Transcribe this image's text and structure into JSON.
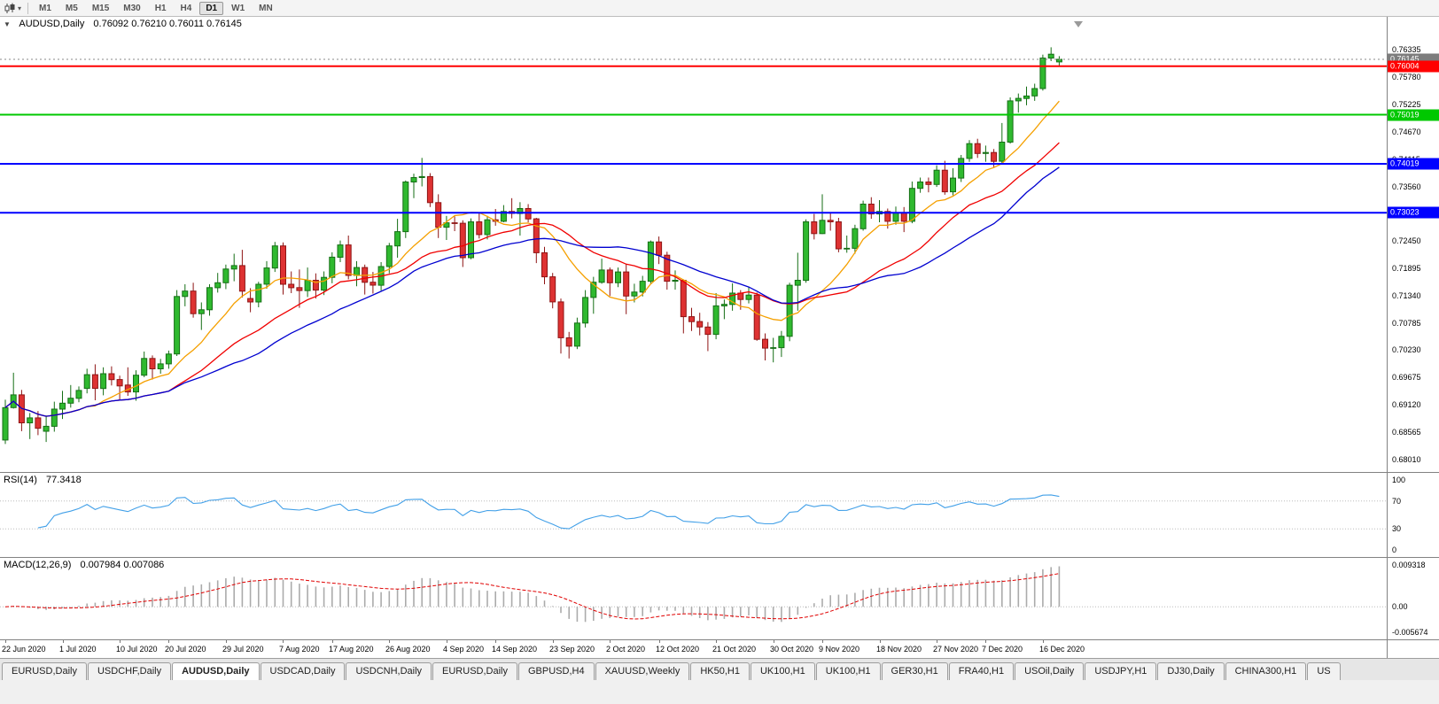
{
  "icons": {
    "collapse_arrow": "▼",
    "dropdown_arrow": "▾"
  },
  "toolbar": {
    "timeframes": [
      "M1",
      "M5",
      "M15",
      "M30",
      "H1",
      "H4",
      "D1",
      "W1",
      "MN"
    ],
    "active_timeframe": "D1"
  },
  "main_chart": {
    "title": "AUDUSD,Daily",
    "ohlc_text": "0.76092 0.76210 0.76011 0.76145"
  },
  "rsi_panel": {
    "label": "RSI(14)",
    "value": "77.3418",
    "period": 14,
    "line_color": "#42a0e8",
    "levels": [
      70,
      30
    ],
    "ticks": [
      {
        "value": 100,
        "label": "100"
      },
      {
        "value": 70,
        "label": "70"
      },
      {
        "value": 30,
        "label": "30"
      },
      {
        "value": 0,
        "label": "0"
      }
    ]
  },
  "macd_panel": {
    "label": "MACD(12,26,9)",
    "value": "0.007984 0.007086",
    "fast": 12,
    "slow": 26,
    "signal": 9,
    "axis_max": 0.009318,
    "axis_min": -0.005674,
    "histogram_color": "#ababab",
    "signal_color": "#e00000",
    "ticks": [
      {
        "value": 0.009318,
        "label": "0.009318"
      },
      {
        "value": 0,
        "label": "0.00"
      },
      {
        "value": -0.005674,
        "label": "-0.005674"
      }
    ]
  },
  "chart_data": {
    "type": "candlestick",
    "symbol": "AUDUSD",
    "period": "Daily",
    "candle_colors": {
      "bull_fill": "#2fb92f",
      "bull_stroke": "#156e15",
      "bear_fill": "#de3232",
      "bear_stroke": "#8e1414"
    },
    "price_axis": {
      "view_min": 0.6775,
      "view_max": 0.7701,
      "current_price": 0.76145,
      "current_price_label": "0.76145",
      "ticks": [
        "0.76335",
        "0.75780",
        "0.75225",
        "0.74670",
        "0.74115",
        "0.73560",
        "0.73005",
        "0.72450",
        "0.71895",
        "0.71340",
        "0.70785",
        "0.70230",
        "0.69675",
        "0.69120",
        "0.68565",
        "0.68010"
      ]
    },
    "horizontal_lines": [
      {
        "price": 0.76004,
        "label": "0.76004",
        "color": "#ff0000"
      },
      {
        "price": 0.75019,
        "label": "0.75019",
        "color": "#00c800"
      },
      {
        "price": 0.74019,
        "label": "0.74019",
        "color": "#0000ff"
      },
      {
        "price": 0.73023,
        "label": "0.73023",
        "color": "#0000ff"
      }
    ],
    "moving_averages": [
      {
        "period": 10,
        "method": "sma",
        "color": "#f5a000"
      },
      {
        "period": 21,
        "method": "sma",
        "color": "#f00000"
      },
      {
        "period": 30,
        "method": "sma",
        "color": "#0000d0"
      }
    ],
    "date_labels": [
      {
        "i": 0,
        "label": "22 Jun 2020"
      },
      {
        "i": 7,
        "label": "1 Jul 2020"
      },
      {
        "i": 14,
        "label": "10 Jul 2020"
      },
      {
        "i": 20,
        "label": "20 Jul 2020"
      },
      {
        "i": 27,
        "label": "29 Jul 2020"
      },
      {
        "i": 34,
        "label": "7 Aug 2020"
      },
      {
        "i": 40,
        "label": "17 Aug 2020"
      },
      {
        "i": 47,
        "label": "26 Aug 2020"
      },
      {
        "i": 54,
        "label": "4 Sep 2020"
      },
      {
        "i": 60,
        "label": "14 Sep 2020"
      },
      {
        "i": 67,
        "label": "23 Sep 2020"
      },
      {
        "i": 74,
        "label": "2 Oct 2020"
      },
      {
        "i": 80,
        "label": "12 Oct 2020"
      },
      {
        "i": 87,
        "label": "21 Oct 2020"
      },
      {
        "i": 94,
        "label": "30 Oct 2020"
      },
      {
        "i": 100,
        "label": "9 Nov 2020"
      },
      {
        "i": 107,
        "label": "18 Nov 2020"
      },
      {
        "i": 114,
        "label": "27 Nov 2020"
      },
      {
        "i": 120,
        "label": "7 Dec 2020"
      },
      {
        "i": 127,
        "label": "16 Dec 2020"
      }
    ],
    "candles": [
      [
        0.684,
        0.6922,
        0.6832,
        0.6906
      ],
      [
        0.6906,
        0.6977,
        0.6904,
        0.6932
      ],
      [
        0.6932,
        0.6942,
        0.6858,
        0.6875
      ],
      [
        0.6875,
        0.6895,
        0.6842,
        0.6885
      ],
      [
        0.6885,
        0.6899,
        0.685,
        0.6864
      ],
      [
        0.6858,
        0.689,
        0.6836,
        0.6868
      ],
      [
        0.6868,
        0.6918,
        0.6857,
        0.6903
      ],
      [
        0.6903,
        0.694,
        0.6883,
        0.6915
      ],
      [
        0.6915,
        0.6952,
        0.6906,
        0.6925
      ],
      [
        0.6925,
        0.6949,
        0.6917,
        0.6941
      ],
      [
        0.6945,
        0.6985,
        0.6935,
        0.6973
      ],
      [
        0.6973,
        0.6994,
        0.6921,
        0.6945
      ],
      [
        0.6945,
        0.6988,
        0.6931,
        0.6975
      ],
      [
        0.6975,
        0.699,
        0.6951,
        0.6963
      ],
      [
        0.6963,
        0.6971,
        0.6922,
        0.695
      ],
      [
        0.6952,
        0.6988,
        0.693,
        0.6938
      ],
      [
        0.6938,
        0.6982,
        0.692,
        0.6972
      ],
      [
        0.6972,
        0.702,
        0.6968,
        0.7006
      ],
      [
        0.7006,
        0.7012,
        0.6963,
        0.6985
      ],
      [
        0.6985,
        0.7005,
        0.6975,
        0.6995
      ],
      [
        0.6995,
        0.7022,
        0.6985,
        0.7015
      ],
      [
        0.7015,
        0.7145,
        0.7011,
        0.7132
      ],
      [
        0.7132,
        0.7157,
        0.7112,
        0.7143
      ],
      [
        0.7143,
        0.716,
        0.7089,
        0.7097
      ],
      [
        0.7097,
        0.712,
        0.7064,
        0.7105
      ],
      [
        0.7105,
        0.7157,
        0.7093,
        0.715
      ],
      [
        0.715,
        0.718,
        0.714,
        0.716
      ],
      [
        0.716,
        0.7197,
        0.7147,
        0.7188
      ],
      [
        0.7188,
        0.7219,
        0.7163,
        0.7195
      ],
      [
        0.7195,
        0.7227,
        0.713,
        0.7143
      ],
      [
        0.7128,
        0.7149,
        0.71,
        0.7121
      ],
      [
        0.7121,
        0.7162,
        0.711,
        0.7157
      ],
      [
        0.7157,
        0.7204,
        0.7148,
        0.719
      ],
      [
        0.719,
        0.7243,
        0.7182,
        0.7235
      ],
      [
        0.7235,
        0.7242,
        0.7136,
        0.7157
      ],
      [
        0.7157,
        0.7183,
        0.7139,
        0.715
      ],
      [
        0.715,
        0.7187,
        0.7109,
        0.7144
      ],
      [
        0.7144,
        0.7191,
        0.7131,
        0.7165
      ],
      [
        0.7165,
        0.7179,
        0.7128,
        0.7145
      ],
      [
        0.7145,
        0.7183,
        0.7135,
        0.7171
      ],
      [
        0.7171,
        0.7222,
        0.7159,
        0.7212
      ],
      [
        0.7212,
        0.7246,
        0.7202,
        0.7237
      ],
      [
        0.7237,
        0.7256,
        0.7167,
        0.7175
      ],
      [
        0.7175,
        0.7204,
        0.7153,
        0.7191
      ],
      [
        0.7191,
        0.7197,
        0.7136,
        0.7161
      ],
      [
        0.7161,
        0.7182,
        0.7138,
        0.7155
      ],
      [
        0.7155,
        0.7202,
        0.7144,
        0.7193
      ],
      [
        0.7193,
        0.7241,
        0.7179,
        0.7235
      ],
      [
        0.7235,
        0.729,
        0.7211,
        0.7264
      ],
      [
        0.7264,
        0.7368,
        0.7251,
        0.7365
      ],
      [
        0.7365,
        0.7382,
        0.7332,
        0.7374
      ],
      [
        0.7374,
        0.7414,
        0.7356,
        0.7376
      ],
      [
        0.7376,
        0.7383,
        0.7314,
        0.7323
      ],
      [
        0.7323,
        0.734,
        0.7251,
        0.7273
      ],
      [
        0.7273,
        0.7296,
        0.7247,
        0.7282
      ],
      [
        0.7282,
        0.7295,
        0.7265,
        0.7281
      ],
      [
        0.7281,
        0.7287,
        0.7192,
        0.7211
      ],
      [
        0.7211,
        0.7291,
        0.7208,
        0.7284
      ],
      [
        0.7284,
        0.7302,
        0.725,
        0.7258
      ],
      [
        0.7258,
        0.7296,
        0.7248,
        0.7288
      ],
      [
        0.7288,
        0.731,
        0.7276,
        0.7285
      ],
      [
        0.7285,
        0.7318,
        0.7283,
        0.7305
      ],
      [
        0.7305,
        0.7332,
        0.7291,
        0.7301
      ],
      [
        0.7301,
        0.7324,
        0.7256,
        0.7311
      ],
      [
        0.7311,
        0.732,
        0.7283,
        0.729
      ],
      [
        0.729,
        0.7292,
        0.72,
        0.7221
      ],
      [
        0.7221,
        0.7233,
        0.7157,
        0.7172
      ],
      [
        0.7172,
        0.718,
        0.7108,
        0.7121
      ],
      [
        0.7121,
        0.7128,
        0.7016,
        0.7048
      ],
      [
        0.7048,
        0.706,
        0.7006,
        0.7031
      ],
      [
        0.7031,
        0.7089,
        0.7025,
        0.7078
      ],
      [
        0.7078,
        0.7145,
        0.7069,
        0.713
      ],
      [
        0.713,
        0.7172,
        0.7097,
        0.7161
      ],
      [
        0.7161,
        0.7209,
        0.7158,
        0.7186
      ],
      [
        0.7186,
        0.7191,
        0.7133,
        0.716
      ],
      [
        0.716,
        0.7191,
        0.7151,
        0.7182
      ],
      [
        0.7182,
        0.7198,
        0.7096,
        0.7133
      ],
      [
        0.7133,
        0.7158,
        0.712,
        0.7141
      ],
      [
        0.7141,
        0.7174,
        0.7132,
        0.7163
      ],
      [
        0.7163,
        0.7246,
        0.7157,
        0.7243
      ],
      [
        0.7243,
        0.7254,
        0.7198,
        0.7216
      ],
      [
        0.7216,
        0.7223,
        0.7146,
        0.7163
      ],
      [
        0.7163,
        0.7185,
        0.7146,
        0.7165
      ],
      [
        0.7165,
        0.7167,
        0.7057,
        0.7091
      ],
      [
        0.7091,
        0.7109,
        0.7062,
        0.7081
      ],
      [
        0.7081,
        0.7099,
        0.7053,
        0.707
      ],
      [
        0.707,
        0.708,
        0.7021,
        0.7055
      ],
      [
        0.7055,
        0.7139,
        0.7045,
        0.7113
      ],
      [
        0.7113,
        0.7126,
        0.7086,
        0.7116
      ],
      [
        0.7116,
        0.7159,
        0.7103,
        0.7139
      ],
      [
        0.7139,
        0.7145,
        0.7105,
        0.7126
      ],
      [
        0.7126,
        0.7152,
        0.7118,
        0.7135
      ],
      [
        0.7135,
        0.714,
        0.7042,
        0.7045
      ],
      [
        0.7045,
        0.7057,
        0.7002,
        0.7027
      ],
      [
        0.7027,
        0.7048,
        0.6998,
        0.7028
      ],
      [
        0.7028,
        0.7062,
        0.7009,
        0.7051
      ],
      [
        0.7051,
        0.716,
        0.7041,
        0.7155
      ],
      [
        0.7155,
        0.7221,
        0.7103,
        0.7165
      ],
      [
        0.7165,
        0.7289,
        0.716,
        0.7284
      ],
      [
        0.7284,
        0.73,
        0.7248,
        0.726
      ],
      [
        0.726,
        0.734,
        0.7259,
        0.7287
      ],
      [
        0.7287,
        0.7302,
        0.7266,
        0.7284
      ],
      [
        0.7284,
        0.7292,
        0.7222,
        0.7229
      ],
      [
        0.7229,
        0.7256,
        0.7221,
        0.723
      ],
      [
        0.723,
        0.7278,
        0.7219,
        0.727
      ],
      [
        0.727,
        0.7327,
        0.7266,
        0.732
      ],
      [
        0.732,
        0.7334,
        0.729,
        0.73
      ],
      [
        0.73,
        0.7328,
        0.7283,
        0.7305
      ],
      [
        0.7305,
        0.7311,
        0.727,
        0.7285
      ],
      [
        0.7285,
        0.7315,
        0.7278,
        0.7302
      ],
      [
        0.7302,
        0.7314,
        0.7263,
        0.7285
      ],
      [
        0.7285,
        0.7366,
        0.7281,
        0.7352
      ],
      [
        0.7352,
        0.7374,
        0.7343,
        0.7365
      ],
      [
        0.7365,
        0.7374,
        0.7344,
        0.736
      ],
      [
        0.736,
        0.7399,
        0.7355,
        0.7389
      ],
      [
        0.7389,
        0.7408,
        0.7339,
        0.7345
      ],
      [
        0.7345,
        0.7393,
        0.7338,
        0.7373
      ],
      [
        0.7373,
        0.742,
        0.7365,
        0.7413
      ],
      [
        0.7413,
        0.745,
        0.7406,
        0.7443
      ],
      [
        0.7443,
        0.7453,
        0.7414,
        0.7423
      ],
      [
        0.7423,
        0.7439,
        0.7406,
        0.7425
      ],
      [
        0.7425,
        0.7432,
        0.7395,
        0.7407
      ],
      [
        0.7407,
        0.7485,
        0.7401,
        0.7446
      ],
      [
        0.7446,
        0.7537,
        0.7443,
        0.753
      ],
      [
        0.753,
        0.7545,
        0.7506,
        0.7535
      ],
      [
        0.7535,
        0.7559,
        0.7521,
        0.754
      ],
      [
        0.754,
        0.7565,
        0.753,
        0.7555
      ],
      [
        0.7555,
        0.7624,
        0.7551,
        0.7617
      ],
      [
        0.7617,
        0.7639,
        0.7611,
        0.7625
      ],
      [
        0.76092,
        0.7621,
        0.76011,
        0.76145
      ]
    ]
  },
  "tab_bar": {
    "active_index": 2,
    "tabs": [
      "EURUSD,Daily",
      "USDCHF,Daily",
      "AUDUSD,Daily",
      "USDCAD,Daily",
      "USDCNH,Daily",
      "EURUSD,Daily",
      "GBPUSD,H4",
      "XAUUSD,Weekly",
      "HK50,H1",
      "UK100,H1",
      "UK100,H1",
      "GER30,H1",
      "FRA40,H1",
      "USOil,Daily",
      "USDJPY,H1",
      "DJ30,Daily",
      "CHINA300,H1",
      "US"
    ]
  }
}
